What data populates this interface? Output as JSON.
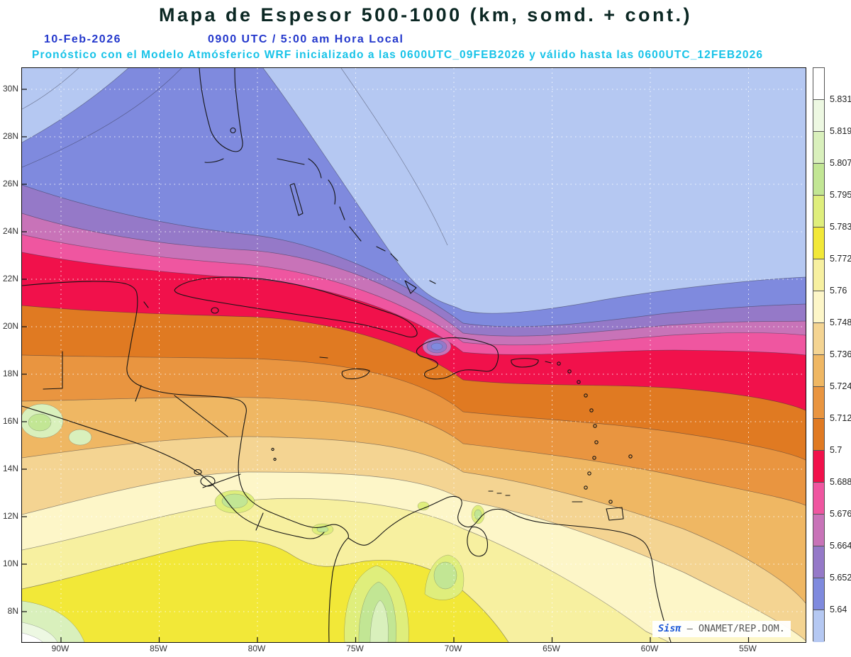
{
  "header": {
    "title": "Mapa de Espesor 500-1000 (km, somd. + cont.)",
    "date": "10-Feb-2026",
    "time": "0900 UTC / 5:00 am Hora Local",
    "forecast_line": "Pronóstico con el Modelo Atmósferico WRF inicializado a las 0600UTC_09FEB2026 y válido hasta las  0600UTC_12FEB2026"
  },
  "axes": {
    "lat_labels": [
      "30N",
      "28N",
      "26N",
      "24N",
      "22N",
      "20N",
      "18N",
      "16N",
      "14N",
      "12N",
      "10N",
      "8N"
    ],
    "lon_labels": [
      "90W",
      "85W",
      "80W",
      "75W",
      "70W",
      "65W",
      "60W",
      "55W"
    ]
  },
  "colorbar": {
    "tick_labels": [
      "5.831",
      "5.819",
      "5.807",
      "5.795",
      "5.783",
      "5.772",
      "5.76",
      "5.748",
      "5.736",
      "5.724",
      "5.712",
      "5.7",
      "5.688",
      "5.676",
      "5.664",
      "5.652",
      "5.64"
    ],
    "colors": [
      "#ffffff",
      "#edf8e2",
      "#d9f0bc",
      "#c2e694",
      "#dfee7c",
      "#f2e838",
      "#f7f0a0",
      "#fdf6c8",
      "#f4d492",
      "#efb763",
      "#e99540",
      "#e07a22",
      "#f1114b",
      "#ef56a0",
      "#c873b8",
      "#9579c8",
      "#7f8ade",
      "#b5c8f2"
    ]
  },
  "watermark": {
    "brand": "Sisπ",
    "separator": "– ",
    "source": "ONAMET/REP.DOM."
  },
  "chart_data": {
    "type": "contour_map",
    "variable": "Espesor 500-1000 (km), sombreado + contornos",
    "model": "WRF",
    "levels": [
      5.64,
      5.652,
      5.664,
      5.676,
      5.688,
      5.7,
      5.712,
      5.724,
      5.736,
      5.748,
      5.76,
      5.772,
      5.783,
      5.795,
      5.807,
      5.819,
      5.831
    ],
    "lat_ticks": [
      "8N",
      "10N",
      "12N",
      "14N",
      "16N",
      "18N",
      "20N",
      "22N",
      "24N",
      "26N",
      "28N",
      "30N"
    ],
    "lon_ticks": [
      "90W",
      "85W",
      "80W",
      "75W",
      "70W",
      "65W",
      "60W",
      "55W"
    ],
    "legend_position": "right",
    "grid": true,
    "pattern": "Valores bajos (azules, < 5.64) sobre el Atlántico al norte; banda carmesí 5.688-5.7 cruzando el Caribe cerca de 18-23N con vaguada que desciende cerca de 70W sobre La Española; valores altos (amarillos/verdes, > 5.772) sobre Centroamérica y el norte de Suramérica"
  }
}
